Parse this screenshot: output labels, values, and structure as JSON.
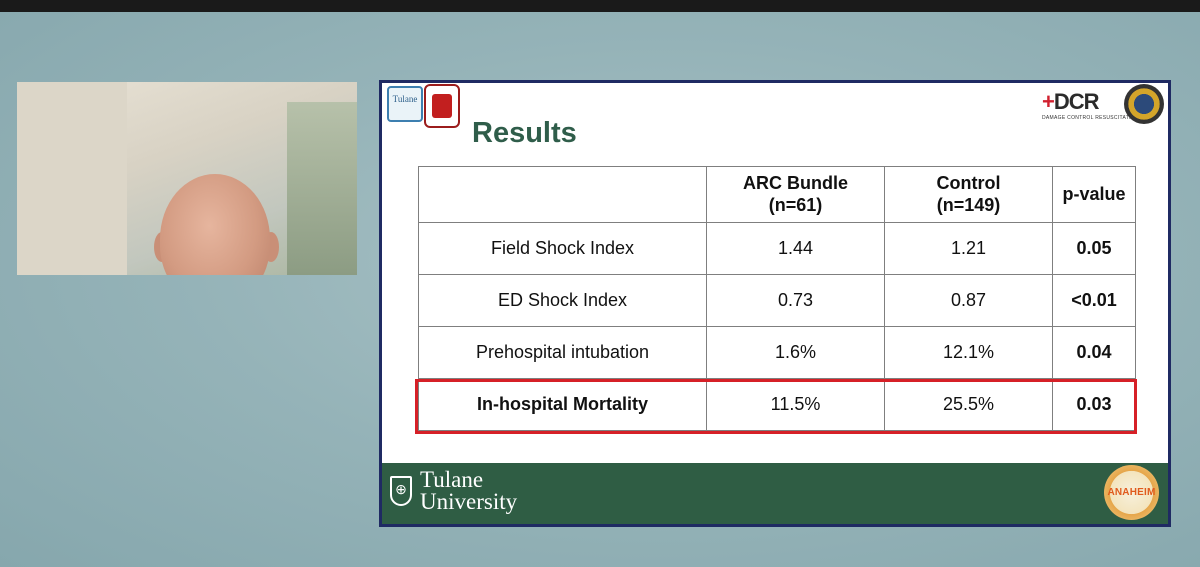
{
  "colors": {
    "slide_border": "#1f2a63",
    "title_green": "#2f5d4a",
    "footer_green": "#2f5d44",
    "highlight_red": "#d62027",
    "background": "#8fb0b5"
  },
  "slide": {
    "title": "Results",
    "logos": {
      "tulane_surgery": "Tulane",
      "dcr_mark_plus": "+",
      "dcr_mark": "DCR",
      "dcr_sub": "DAMAGE CONTROL RESUSCITATION",
      "seal": "new-orleans-ems-seal-icon"
    },
    "table": {
      "headers": [
        "",
        "ARC Bundle (n=61)",
        "Control (n=149)",
        "p-value"
      ],
      "rows": [
        {
          "label": "Field Shock Index",
          "arc": "1.44",
          "control": "1.21",
          "p": "0.05"
        },
        {
          "label": "ED Shock Index",
          "arc": "0.73",
          "control": "0.87",
          "p": "<0.01"
        },
        {
          "label": "Prehospital intubation",
          "arc": "1.6%",
          "control": "12.1%",
          "p": "0.04"
        },
        {
          "label": "In-hospital Mortality",
          "arc": "11.5%",
          "control": "25.5%",
          "p": "0.03"
        }
      ],
      "highlighted_row": "In-hospital Mortality"
    },
    "footer": {
      "university_line1": "Tulane",
      "university_line2": "University",
      "badge_text": "ANAHEIM"
    }
  }
}
